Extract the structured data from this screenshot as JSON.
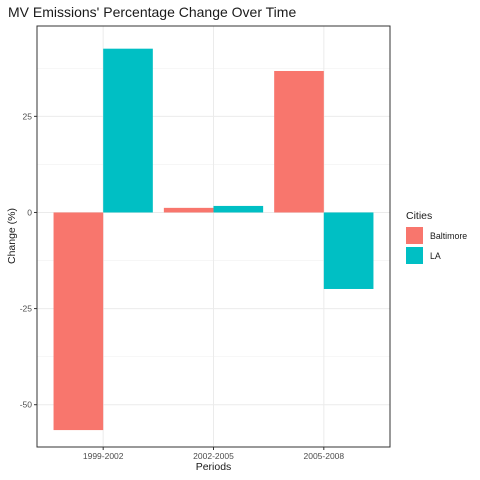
{
  "chart_data": {
    "type": "bar",
    "title": "MV Emissions' Percentage Change Over Time",
    "xlabel": "Periods",
    "ylabel": "Change (%)",
    "categories": [
      "1999-2002",
      "2002-2005",
      "2005-2008"
    ],
    "series": [
      {
        "name": "Baltimore",
        "color": "#F8766D",
        "values": [
          -56.6,
          1.2,
          36.8
        ]
      },
      {
        "name": "LA",
        "color": "#00BFC4",
        "values": [
          42.6,
          1.7,
          -19.9
        ]
      }
    ],
    "ylim": [
      -61,
      48.5
    ],
    "yticks": [
      -50,
      -25,
      0,
      25
    ],
    "ytick_labels": [
      "-50",
      "-25",
      "0",
      "25"
    ],
    "legend_title": "Cities",
    "legend_position": "right",
    "grid": true
  }
}
